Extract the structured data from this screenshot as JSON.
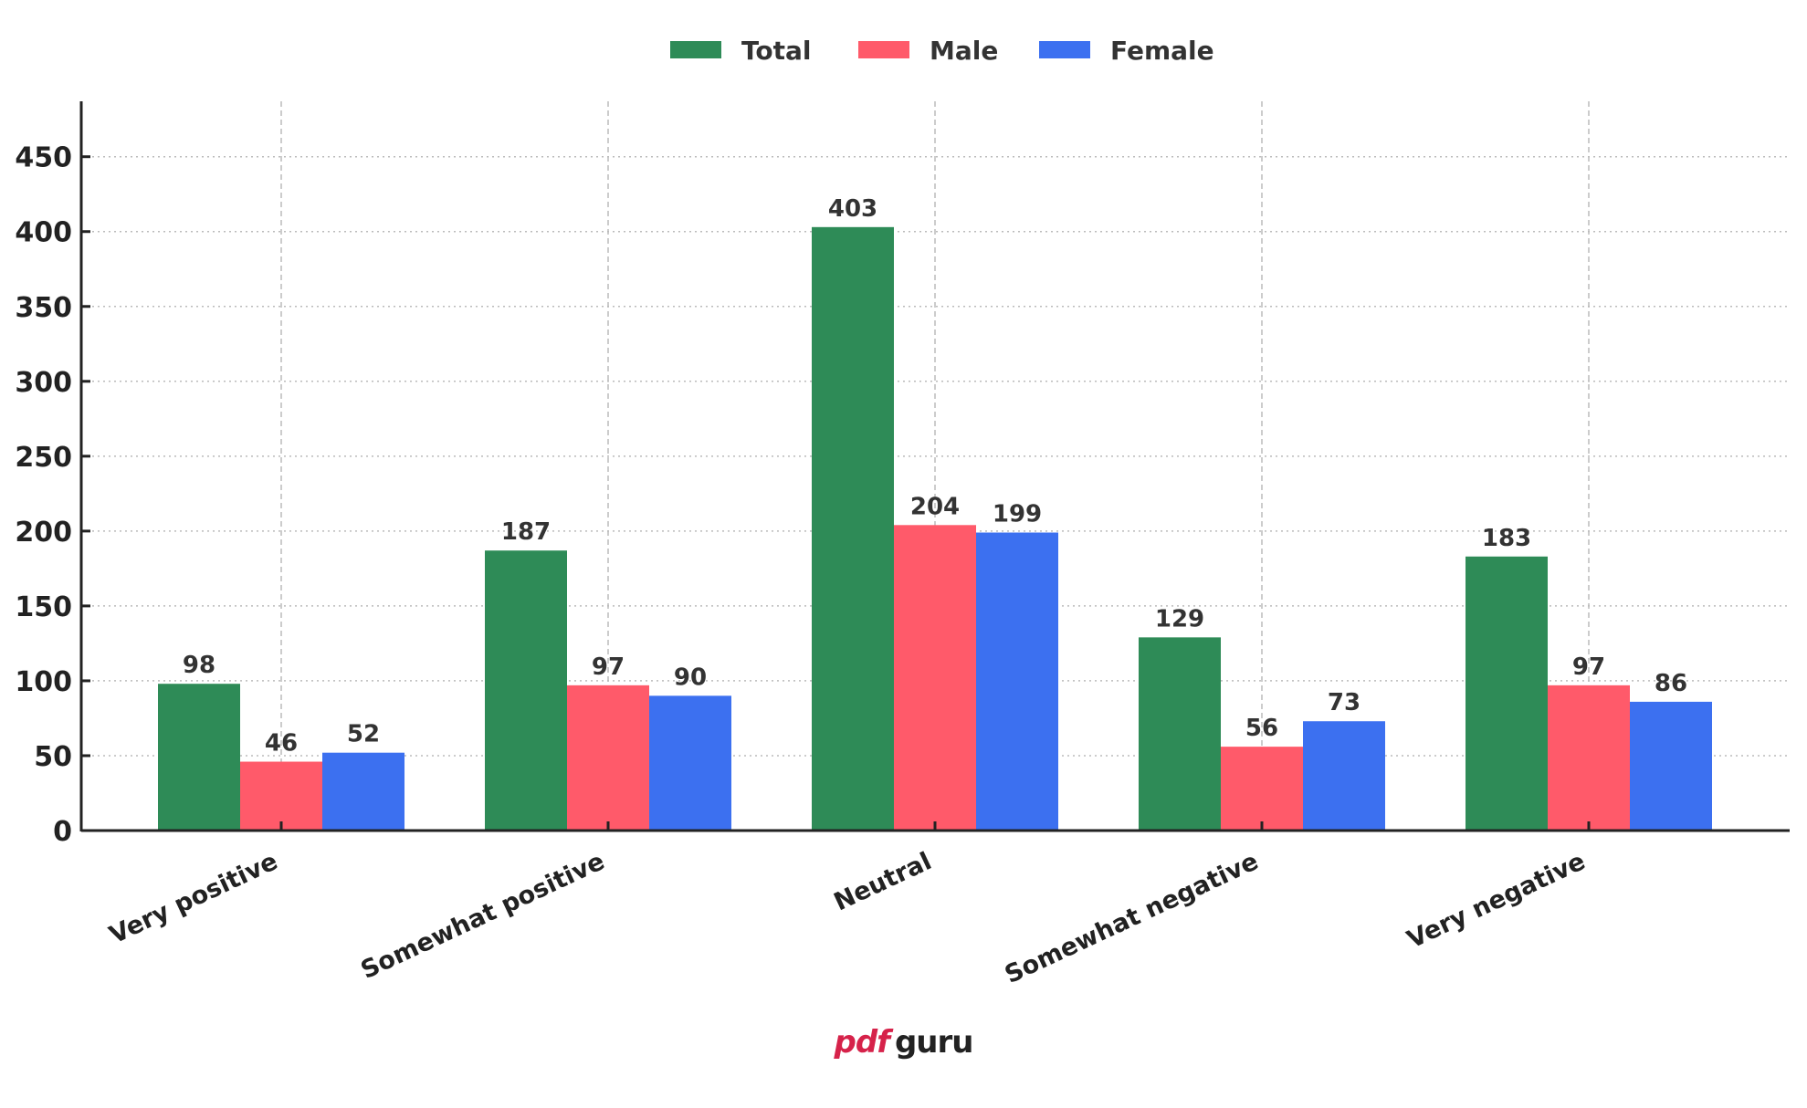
{
  "chart_data": {
    "type": "bar",
    "title": "",
    "xlabel": "",
    "ylabel": "",
    "categories": [
      "Very positive",
      "Somewhat positive",
      "Neutral",
      "Somewhat negative",
      "Very negative"
    ],
    "series": [
      {
        "name": "Total",
        "color": "#2e8b57",
        "values": [
          98,
          187,
          403,
          129,
          183
        ]
      },
      {
        "name": "Male",
        "color": "#ff5a6a",
        "values": [
          46,
          97,
          204,
          56,
          97
        ]
      },
      {
        "name": "Female",
        "color": "#3c70f0",
        "values": [
          52,
          90,
          199,
          73,
          86
        ]
      }
    ],
    "ylim": [
      0,
      487
    ],
    "yticks": [
      0,
      50,
      100,
      150,
      200,
      250,
      300,
      350,
      400,
      450
    ],
    "grid": true,
    "legend_position": "top-center",
    "data_labels": true
  },
  "watermark": {
    "part1": "pdf",
    "part2": "guru",
    "color1": "#d6224a",
    "color2": "#222222"
  }
}
